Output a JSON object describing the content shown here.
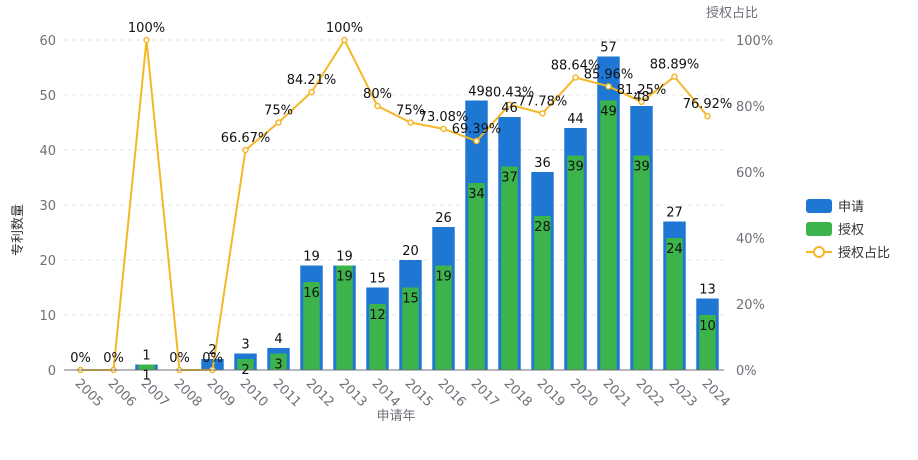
{
  "chart_data": {
    "type": "bar",
    "xlabel": "申请年",
    "ylabel": "专利数量",
    "y2label": "授权占比",
    "ylim": [
      0,
      60
    ],
    "y2lim": [
      0,
      100
    ],
    "yticks": [
      "0",
      "10",
      "20",
      "30",
      "40",
      "50",
      "60"
    ],
    "y2ticks": [
      "0%",
      "20%",
      "40%",
      "60%",
      "80%",
      "100%"
    ],
    "grid": true,
    "legend_position": "right",
    "categories": [
      "2005",
      "2006",
      "2007",
      "2008",
      "2009",
      "2010",
      "2011",
      "2012",
      "2013",
      "2014",
      "2015",
      "2016",
      "2017",
      "2018",
      "2019",
      "2020",
      "2021",
      "2022",
      "2023",
      "2024"
    ],
    "series": [
      {
        "name": "申请",
        "type": "bar",
        "color": "#1f77d4",
        "values": [
          0,
          0,
          1,
          0,
          2,
          3,
          4,
          19,
          19,
          15,
          20,
          26,
          49,
          46,
          36,
          44,
          57,
          48,
          27,
          13
        ]
      },
      {
        "name": "授权",
        "type": "bar",
        "color": "#3cb44b",
        "values": [
          0,
          0,
          1,
          0,
          0,
          2,
          3,
          16,
          19,
          12,
          15,
          19,
          34,
          37,
          28,
          39,
          49,
          39,
          24,
          10
        ]
      },
      {
        "name": "授权占比",
        "type": "line",
        "color": "#f4b728",
        "values": [
          0,
          0,
          100,
          0,
          0,
          66.67,
          75,
          84.21,
          100,
          80,
          75,
          73.08,
          69.39,
          80.43,
          77.78,
          88.64,
          85.96,
          81.25,
          88.89,
          76.92
        ],
        "labels": [
          "0%",
          "0%",
          "100%",
          "0%",
          "0%",
          "66.67%",
          "75%",
          "84.21%",
          "100%",
          "80%",
          "75%",
          "73.08%",
          "69.39%",
          "80.43%",
          "77.78%",
          "88.64%",
          "85.96%",
          "81.25%",
          "88.89%",
          "76.92%"
        ]
      }
    ]
  }
}
